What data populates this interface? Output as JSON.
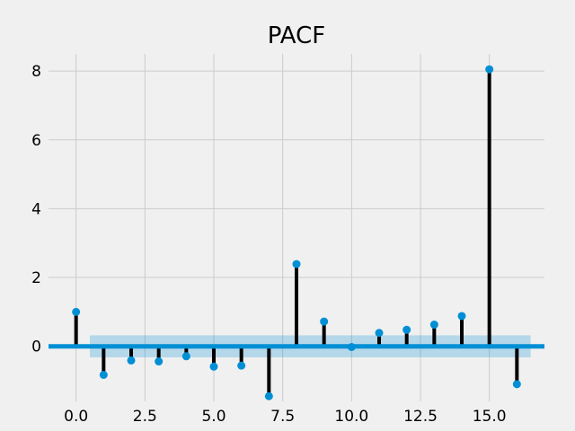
{
  "chart_data": {
    "type": "stem",
    "title": "PACF",
    "xlabel": "",
    "ylabel": "",
    "xlim": [
      -1.0,
      17.0
    ],
    "ylim": [
      -1.6,
      8.5
    ],
    "x_ticks": [
      0.0,
      2.5,
      5.0,
      7.5,
      10.0,
      12.5,
      15.0
    ],
    "x_tick_labels": [
      "0.0",
      "2.5",
      "5.0",
      "7.5",
      "10.0",
      "12.5",
      "15.0"
    ],
    "y_ticks": [
      0,
      2,
      4,
      6,
      8
    ],
    "y_tick_labels": [
      "0",
      "2",
      "4",
      "6",
      "8"
    ],
    "grid": true,
    "confidence_band": {
      "x_range": [
        0.5,
        16.5
      ],
      "lower": -0.32,
      "upper": 0.32
    },
    "lags": [
      0,
      1,
      2,
      3,
      4,
      5,
      6,
      7,
      8,
      9,
      10,
      11,
      12,
      13,
      14,
      15,
      16
    ],
    "values": [
      1.0,
      -0.83,
      -0.41,
      -0.44,
      -0.29,
      -0.59,
      -0.56,
      -1.45,
      2.39,
      0.72,
      -0.02,
      0.39,
      0.48,
      0.63,
      0.88,
      8.05,
      -1.1
    ],
    "colors": {
      "background": "#f0f0f0",
      "grid": "#cbcbcb",
      "stem": "#000000",
      "marker": "#008fd5",
      "zero_line": "#008fd5",
      "band": "#008fd5"
    }
  }
}
